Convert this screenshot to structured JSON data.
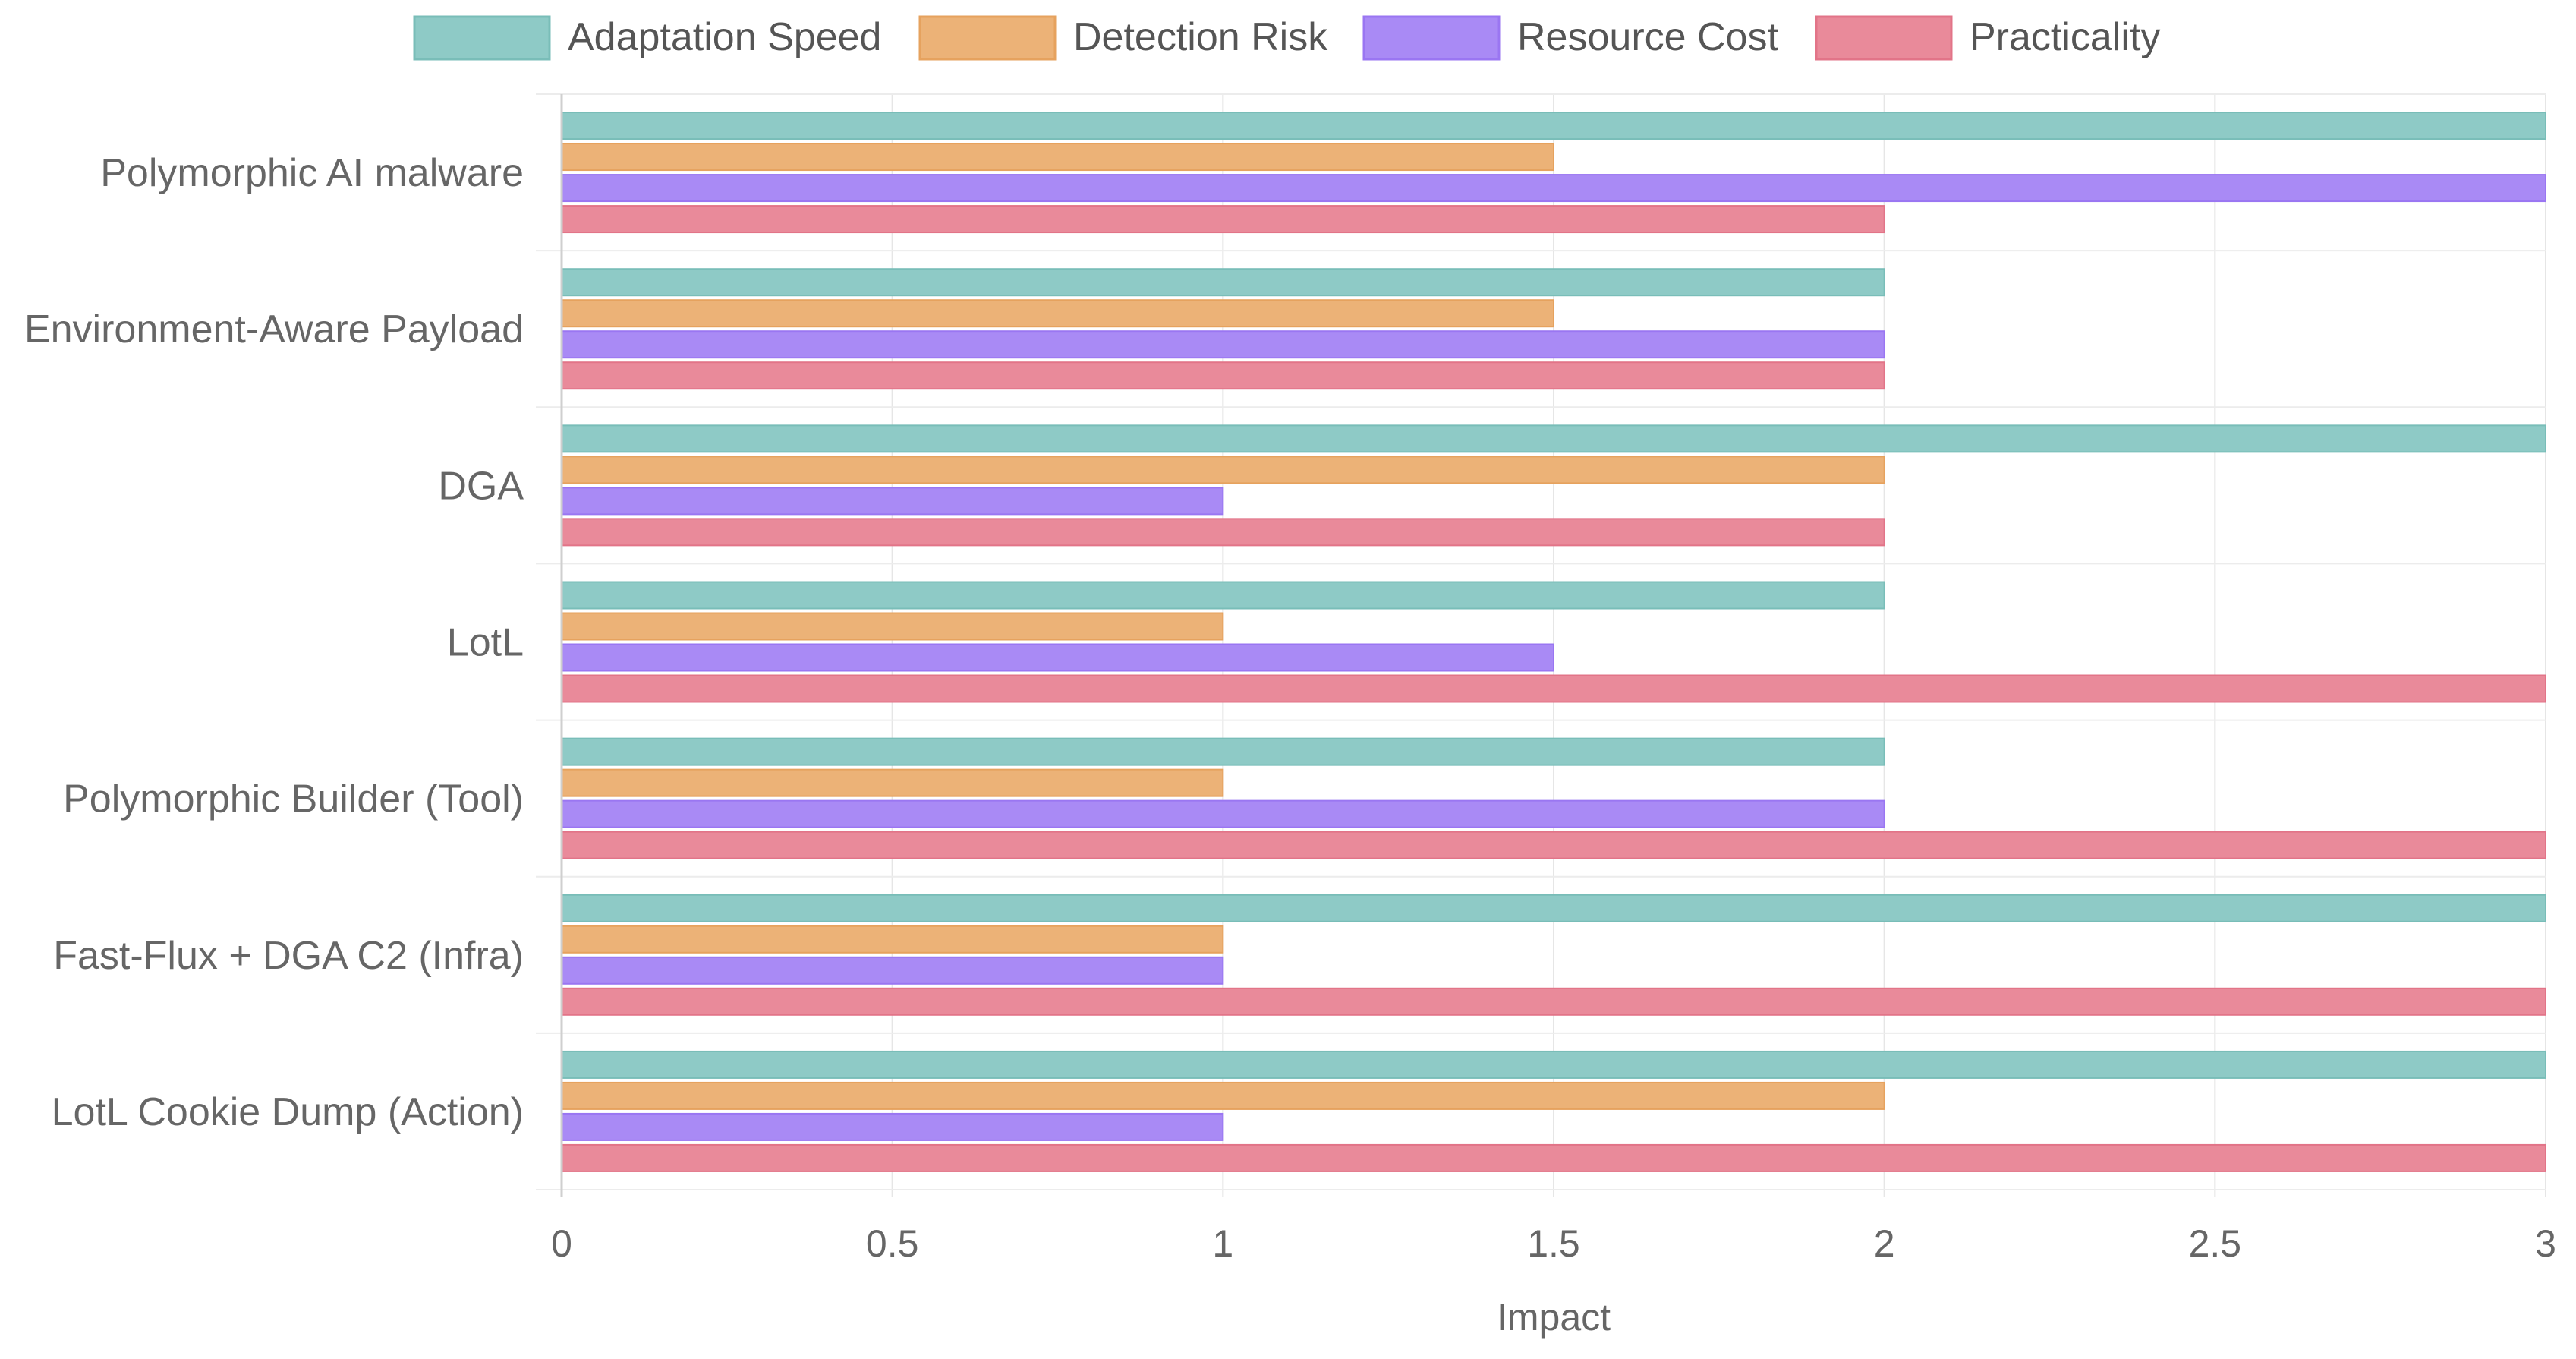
{
  "chart_data": {
    "type": "bar",
    "orientation": "horizontal",
    "categories": [
      "Polymorphic AI malware",
      "Environment-Aware Payload",
      "DGA",
      "LotL",
      "Polymorphic Builder (Tool)",
      "Fast-Flux + DGA C2 (Infra)",
      "LotL Cookie Dump (Action)"
    ],
    "series": [
      {
        "name": "Adaptation Speed",
        "color": "#8ecac6",
        "border": "#79bdb8",
        "values": [
          3,
          2,
          3,
          2,
          2,
          3,
          3
        ]
      },
      {
        "name": "Detection Risk",
        "color": "#ecb277",
        "border": "#e6a25e",
        "values": [
          1.5,
          1.5,
          2,
          1,
          1,
          1,
          2
        ]
      },
      {
        "name": "Resource Cost",
        "color": "#a98af5",
        "border": "#9a76f2",
        "values": [
          3,
          2,
          1,
          1.5,
          2,
          1,
          1
        ]
      },
      {
        "name": "Practicality",
        "color": "#e98a9a",
        "border": "#e27488",
        "values": [
          2,
          2,
          2,
          3,
          3,
          3,
          3
        ]
      }
    ],
    "xlabel": "Impact",
    "ylabel": "",
    "xlim": [
      0,
      3
    ],
    "xticks": [
      0,
      0.5,
      1,
      1.5,
      2,
      2.5,
      3
    ],
    "xtick_labels": [
      "0",
      "0.5",
      "1",
      "1.5",
      "2",
      "2.5",
      "3"
    ],
    "grid": true,
    "legend_position": "top-center"
  }
}
